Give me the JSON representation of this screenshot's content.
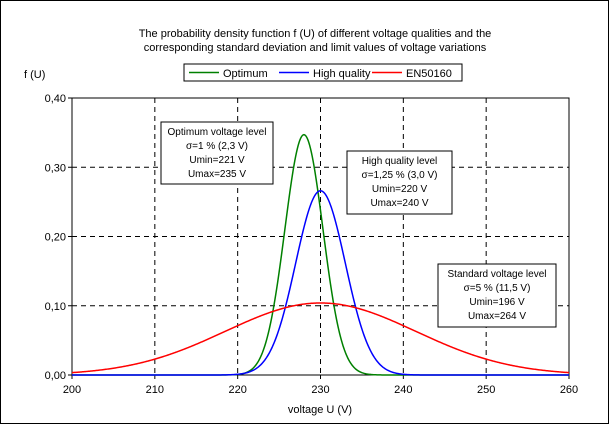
{
  "chart_data": {
    "type": "line",
    "title_line1": "The probability density function f (U) of different voltage qualities and the",
    "title_line2": "corresponding standard deviation and limit values of voltage variations",
    "ylabel": "f (U)",
    "xlabel": "voltage U (V)",
    "xlim": [
      200,
      260
    ],
    "ylim": [
      0,
      0.4
    ],
    "x_ticks": [
      200,
      210,
      220,
      230,
      240,
      250,
      260
    ],
    "y_ticks": [
      0,
      0.1,
      0.2,
      0.3,
      0.4
    ],
    "x_tick_labels": [
      "200",
      "210",
      "220",
      "230",
      "240",
      "250",
      "260"
    ],
    "y_tick_labels": [
      "0,00",
      "0,10",
      "0,20",
      "0,30",
      "0,40"
    ],
    "grid": true,
    "legend_position": "top-center",
    "series": [
      {
        "name": "Optimum",
        "color": "#008000",
        "mean": 228,
        "sigma": 2.3,
        "umin": 221,
        "umax": 235,
        "peak": 0.347
      },
      {
        "name": "High quality",
        "color": "#0000ff",
        "mean": 230,
        "sigma": 3.0,
        "umin": 220,
        "umax": 240,
        "peak": 0.266
      },
      {
        "name": "EN50160",
        "color": "#ff0000",
        "mean": 230,
        "sigma": 11.5,
        "umin": 196,
        "umax": 264,
        "peak": 0.104
      }
    ],
    "annotations": [
      {
        "lines": [
          "Optimum voltage level",
          "σ=1 % (2,3 V)",
          "Umin=221 V",
          "Umax=235 V"
        ]
      },
      {
        "lines": [
          "High quality level",
          "σ=1,25 % (3,0 V)",
          "Umin=220 V",
          "Umax=240 V"
        ]
      },
      {
        "lines": [
          "Standard voltage level",
          "σ=5 % (11,5 V)",
          "Umin=196 V",
          "Umax=264 V"
        ]
      }
    ]
  }
}
